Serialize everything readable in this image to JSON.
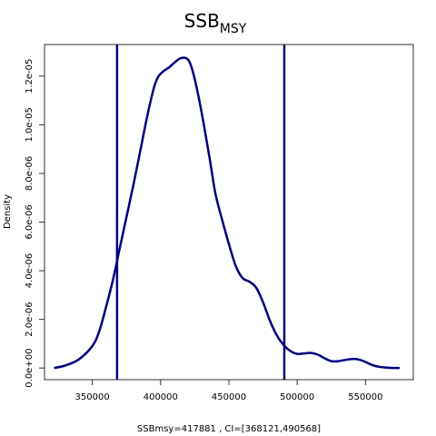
{
  "chart_data": {
    "type": "line",
    "title": "SSB",
    "title_subscript": "MSY",
    "xlabel": "SSBmsy=417881 , CI=[368121,490568]",
    "ylabel": "Density",
    "xlim": [
      315000,
      585000
    ],
    "ylim": [
      -4.8e-07,
      1.33e-05
    ],
    "x_ticks": [
      350000,
      400000,
      450000,
      500000,
      550000
    ],
    "x_tick_labels": [
      "350000",
      "400000",
      "450000",
      "500000",
      "550000"
    ],
    "y_ticks": [
      0,
      2e-06,
      4e-06,
      6e-06,
      8e-06,
      1e-05,
      1.2e-05
    ],
    "y_tick_labels": [
      "0.0e+00",
      "2.0e-06",
      "4.0e-06",
      "6.0e-06",
      "8.0e-06",
      "1.0e-05",
      "1.2e-05"
    ],
    "vlines": [
      368121,
      490568
    ],
    "grid": false,
    "colors": {
      "line": "#00007f",
      "vline": "#00007f",
      "axis": "#333333"
    },
    "series": [
      {
        "x": [
          322000,
          330000,
          340000,
          350000,
          355000,
          360000,
          365000,
          370000,
          375000,
          380000,
          385000,
          390000,
          395000,
          398000,
          402000,
          406000,
          410000,
          414000,
          418000,
          421000,
          424000,
          428000,
          432000,
          436000,
          440000,
          445000,
          450000,
          455000,
          460000,
          465000,
          470000,
          475000,
          480000,
          485000,
          490000,
          495000,
          500000,
          505000,
          510000,
          515000,
          520000,
          525000,
          530000,
          535000,
          540000,
          545000,
          550000,
          555000,
          560000,
          565000,
          570000,
          575000
        ],
        "y": [
          0.0,
          1e-07,
          3.5e-07,
          9e-07,
          1.5e-06,
          2.5e-06,
          3.6e-06,
          4.9e-06,
          6.2e-06,
          7.5e-06,
          8.9e-06,
          1.03e-05,
          1.15e-05,
          1.195e-05,
          1.22e-05,
          1.235e-05,
          1.255e-05,
          1.272e-05,
          1.275e-05,
          1.26e-05,
          1.21e-05,
          1.11e-05,
          9.9e-06,
          8.6e-06,
          7.2e-06,
          6.1e-06,
          5.1e-06,
          4.2e-06,
          3.7e-06,
          3.55e-06,
          3.3e-06,
          2.7e-06,
          1.95e-06,
          1.35e-06,
          9.5e-07,
          7e-07,
          5.8e-07,
          6e-07,
          6.2e-07,
          5.5e-07,
          4e-07,
          2.8e-07,
          2.8e-07,
          3.3e-07,
          3.7e-07,
          3.5e-07,
          2.5e-07,
          1.2e-07,
          5e-08,
          2e-08,
          0.0,
          0.0
        ]
      }
    ]
  }
}
